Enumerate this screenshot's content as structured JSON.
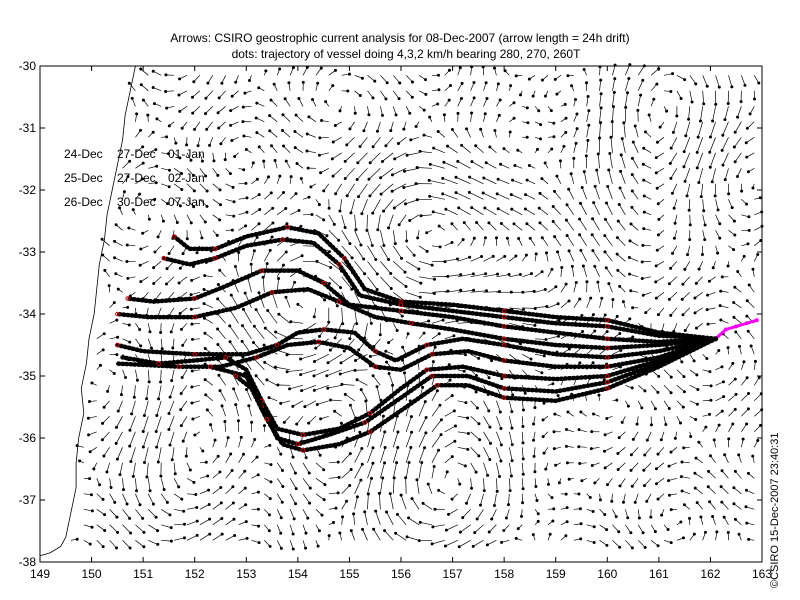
{
  "chart_data": {
    "type": "map-vector-field",
    "title": "Arrows: CSIRO geostrophic current analysis for 08-Dec-2007 (arrow length = 24h drift)",
    "subtitle": "dots: trajectory of vessel doing 4,3,2 km/h bearing 280, 270, 260T",
    "xlim": [
      149,
      163
    ],
    "ylim": [
      -38,
      -30
    ],
    "x_ticks": [
      "149",
      "150",
      "151",
      "152",
      "153",
      "154",
      "155",
      "156",
      "157",
      "158",
      "159",
      "160",
      "161",
      "162",
      "163"
    ],
    "y_ticks": [
      "-30",
      "-31",
      "-32",
      "-33",
      "-34",
      "-35",
      "-36",
      "-37",
      "-38"
    ],
    "date_table": [
      [
        "24-Dec",
        "27-Dec",
        "01-Jan"
      ],
      [
        "25-Dec",
        "27-Dec",
        "02-Jan"
      ],
      [
        "26-Dec",
        "30-Dec",
        "07-Jan"
      ]
    ],
    "start_point": {
      "lon": 162.1,
      "lat": -34.4
    },
    "recent_track": [
      [
        162.1,
        -34.4
      ],
      [
        162.3,
        -34.25
      ],
      [
        162.5,
        -34.2
      ],
      [
        162.7,
        -34.15
      ],
      [
        162.9,
        -34.1
      ]
    ],
    "trajectories": [
      {
        "name": "t1",
        "points": [
          [
            162.1,
            -34.4
          ],
          [
            161.0,
            -34.3
          ],
          [
            160.0,
            -34.1
          ],
          [
            159.0,
            -34.05
          ],
          [
            158.0,
            -33.95
          ],
          [
            157.0,
            -33.85
          ],
          [
            156.0,
            -33.8
          ],
          [
            155.3,
            -33.6
          ],
          [
            154.9,
            -33.1
          ],
          [
            154.4,
            -32.7
          ],
          [
            153.8,
            -32.6
          ],
          [
            153.0,
            -32.75
          ],
          [
            152.4,
            -32.95
          ],
          [
            151.9,
            -32.95
          ],
          [
            151.6,
            -32.75
          ]
        ]
      },
      {
        "name": "t2",
        "points": [
          [
            162.1,
            -34.4
          ],
          [
            161.0,
            -34.35
          ],
          [
            160.0,
            -34.2
          ],
          [
            159.0,
            -34.15
          ],
          [
            158.0,
            -34.05
          ],
          [
            157.0,
            -33.95
          ],
          [
            156.0,
            -33.85
          ],
          [
            155.2,
            -33.7
          ],
          [
            154.8,
            -33.2
          ],
          [
            154.3,
            -32.85
          ],
          [
            153.7,
            -32.8
          ],
          [
            153.0,
            -32.9
          ],
          [
            152.4,
            -33.1
          ],
          [
            151.9,
            -33.2
          ],
          [
            151.4,
            -33.1
          ]
        ]
      },
      {
        "name": "t3",
        "points": [
          [
            162.1,
            -34.4
          ],
          [
            161.0,
            -34.45
          ],
          [
            160.0,
            -34.4
          ],
          [
            159.0,
            -34.3
          ],
          [
            158.0,
            -34.2
          ],
          [
            157.0,
            -34.05
          ],
          [
            156.0,
            -33.95
          ],
          [
            155.0,
            -33.85
          ],
          [
            154.5,
            -33.5
          ],
          [
            154.0,
            -33.3
          ],
          [
            153.3,
            -33.3
          ],
          [
            152.6,
            -33.55
          ],
          [
            152.0,
            -33.75
          ],
          [
            151.2,
            -33.8
          ],
          [
            150.7,
            -33.75
          ]
        ]
      },
      {
        "name": "t4",
        "points": [
          [
            162.1,
            -34.4
          ],
          [
            161.0,
            -34.5
          ],
          [
            160.0,
            -34.55
          ],
          [
            159.0,
            -34.5
          ],
          [
            158.0,
            -34.4
          ],
          [
            157.0,
            -34.25
          ],
          [
            156.2,
            -34.15
          ],
          [
            155.5,
            -34.05
          ],
          [
            154.8,
            -33.8
          ],
          [
            154.2,
            -33.6
          ],
          [
            153.5,
            -33.65
          ],
          [
            152.8,
            -33.9
          ],
          [
            152.0,
            -34.05
          ],
          [
            151.1,
            -34.05
          ],
          [
            150.5,
            -34.0
          ]
        ]
      },
      {
        "name": "t5",
        "points": [
          [
            162.1,
            -34.4
          ],
          [
            161.0,
            -34.6
          ],
          [
            160.0,
            -34.7
          ],
          [
            159.0,
            -34.65
          ],
          [
            158.0,
            -34.5
          ],
          [
            157.2,
            -34.4
          ],
          [
            156.5,
            -34.5
          ],
          [
            155.9,
            -34.75
          ],
          [
            155.5,
            -34.6
          ],
          [
            155.1,
            -34.3
          ],
          [
            154.5,
            -34.25
          ],
          [
            154.0,
            -34.3
          ],
          [
            153.6,
            -34.5
          ],
          [
            153.0,
            -34.65
          ],
          [
            152.0,
            -34.65
          ],
          [
            151.0,
            -34.6
          ],
          [
            150.5,
            -34.5
          ]
        ]
      },
      {
        "name": "t6",
        "points": [
          [
            162.1,
            -34.4
          ],
          [
            161.0,
            -34.7
          ],
          [
            160.0,
            -34.85
          ],
          [
            159.0,
            -34.85
          ],
          [
            158.0,
            -34.75
          ],
          [
            157.3,
            -34.6
          ],
          [
            156.6,
            -34.65
          ],
          [
            156.0,
            -34.9
          ],
          [
            155.5,
            -34.85
          ],
          [
            155.0,
            -34.55
          ],
          [
            154.4,
            -34.45
          ],
          [
            153.8,
            -34.5
          ],
          [
            153.2,
            -34.7
          ],
          [
            152.5,
            -34.85
          ],
          [
            151.7,
            -34.85
          ],
          [
            150.5,
            -34.8
          ]
        ]
      },
      {
        "name": "t7",
        "points": [
          [
            162.1,
            -34.4
          ],
          [
            161.0,
            -34.75
          ],
          [
            160.0,
            -35.0
          ],
          [
            159.0,
            -35.05
          ],
          [
            158.0,
            -35.0
          ],
          [
            157.2,
            -34.85
          ],
          [
            156.5,
            -34.9
          ],
          [
            156.0,
            -35.2
          ],
          [
            155.4,
            -35.6
          ],
          [
            154.8,
            -35.85
          ],
          [
            154.1,
            -35.95
          ],
          [
            153.6,
            -35.85
          ],
          [
            153.3,
            -35.4
          ],
          [
            153.0,
            -34.9
          ],
          [
            152.6,
            -34.7
          ],
          [
            152.0,
            -34.75
          ],
          [
            151.3,
            -34.8
          ],
          [
            150.6,
            -34.7
          ]
        ]
      },
      {
        "name": "t8",
        "points": [
          [
            162.1,
            -34.4
          ],
          [
            161.0,
            -34.8
          ],
          [
            160.0,
            -35.1
          ],
          [
            159.0,
            -35.25
          ],
          [
            158.0,
            -35.2
          ],
          [
            157.3,
            -35.0
          ],
          [
            156.6,
            -35.0
          ],
          [
            156.0,
            -35.35
          ],
          [
            155.3,
            -35.75
          ],
          [
            154.6,
            -35.95
          ],
          [
            154.0,
            -36.1
          ],
          [
            153.6,
            -36.0
          ],
          [
            153.3,
            -35.5
          ],
          [
            153.0,
            -35.0
          ],
          [
            152.3,
            -34.85
          ]
        ]
      },
      {
        "name": "t9",
        "points": [
          [
            162.1,
            -34.4
          ],
          [
            161.0,
            -34.85
          ],
          [
            160.0,
            -35.2
          ],
          [
            159.0,
            -35.4
          ],
          [
            158.0,
            -35.35
          ],
          [
            157.3,
            -35.15
          ],
          [
            156.7,
            -35.15
          ],
          [
            156.1,
            -35.5
          ],
          [
            155.4,
            -35.9
          ],
          [
            154.8,
            -36.1
          ],
          [
            154.1,
            -36.2
          ],
          [
            153.7,
            -36.1
          ],
          [
            153.4,
            -35.7
          ],
          [
            153.1,
            -35.2
          ],
          [
            152.8,
            -35.0
          ]
        ]
      }
    ],
    "coastline": [
      [
        150.85,
        -30.0
      ],
      [
        150.75,
        -30.4
      ],
      [
        150.65,
        -30.8
      ],
      [
        150.6,
        -31.2
      ],
      [
        150.5,
        -31.6
      ],
      [
        150.4,
        -32.0
      ],
      [
        150.3,
        -32.4
      ],
      [
        150.25,
        -32.8
      ],
      [
        150.15,
        -33.2
      ],
      [
        150.1,
        -33.6
      ],
      [
        150.05,
        -34.0
      ],
      [
        149.95,
        -34.4
      ],
      [
        149.9,
        -34.8
      ],
      [
        149.8,
        -35.2
      ],
      [
        149.85,
        -35.6
      ],
      [
        149.75,
        -36.0
      ],
      [
        149.7,
        -36.4
      ],
      [
        149.7,
        -36.8
      ],
      [
        149.6,
        -37.2
      ],
      [
        149.5,
        -37.6
      ],
      [
        149.4,
        -37.75
      ],
      [
        149.2,
        -37.85
      ],
      [
        149.0,
        -37.9
      ]
    ],
    "eddies": [
      {
        "lon": 157.1,
        "lat": -32.7,
        "rx": 1.4,
        "ry": 1.0,
        "rotation": "ccw"
      },
      {
        "lon": 160.8,
        "lat": -31.0,
        "rx": 1.0,
        "ry": 0.9,
        "rotation": "cw"
      },
      {
        "lon": 154.3,
        "lat": -34.0,
        "rx": 0.9,
        "ry": 0.7,
        "rotation": "cw"
      },
      {
        "lon": 154.6,
        "lat": -36.2,
        "rx": 1.0,
        "ry": 0.8,
        "rotation": "ccw"
      },
      {
        "lon": 157.2,
        "lat": -36.4,
        "rx": 1.2,
        "ry": 0.9,
        "rotation": "cw"
      },
      {
        "lon": 152.3,
        "lat": -35.9,
        "rx": 1.0,
        "ry": 0.9,
        "rotation": "ccw"
      }
    ],
    "colors": {
      "trajectory": "#000000",
      "markers": "#e00000",
      "recent_track": "#ff00ff",
      "arrows": "#000000"
    }
  },
  "timestamp": "©CSIRO 15-Dec-2007 23:40:31"
}
